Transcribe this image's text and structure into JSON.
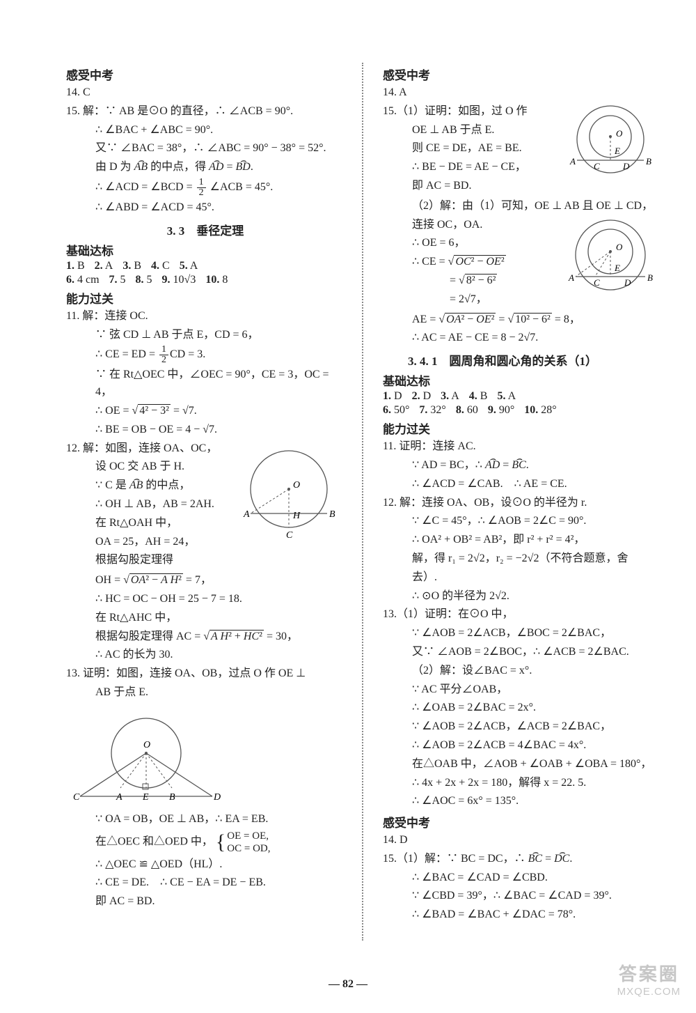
{
  "page_number": "— 82 —",
  "watermark": {
    "top": "答案圈",
    "bottom": "MXQE.COM"
  },
  "colors": {
    "text": "#222222",
    "bg": "#ffffff",
    "divider": "#888888"
  },
  "left": {
    "hdr1": "感受中考",
    "q14": "14.  C",
    "q15": {
      "head": "15.  解：∵ AB 是⊙O 的直径，∴ ∠ACB = 90°.",
      "l2": "∴ ∠BAC + ∠ABC = 90°.",
      "l3": "又∵ ∠BAC = 38°，∴ ∠ABC = 90° − 38° = 52°.",
      "l4a": "由 D 为 ",
      "l4b": " 的中点，得 ",
      "l4c": " = ",
      "l4d": ".",
      "l5a": "∴ ∠ACD = ∠BCD = ",
      "l5b": " ∠ACB = 45°.",
      "l6": "∴ ∠ABD = ∠ACD = 45°."
    },
    "title33": "3. 3　垂径定理",
    "hdr_basic": "基础达标",
    "basic_ans1": [
      {
        "n": "1.",
        "v": "B"
      },
      {
        "n": "2.",
        "v": "A"
      },
      {
        "n": "3.",
        "v": "B"
      },
      {
        "n": "4.",
        "v": "C"
      },
      {
        "n": "5.",
        "v": "A"
      }
    ],
    "basic_ans2": [
      {
        "n": "6.",
        "v": "4 cm"
      },
      {
        "n": "7.",
        "v": "5"
      },
      {
        "n": "8.",
        "v": "5"
      },
      {
        "n": "9.",
        "v": "10√3"
      },
      {
        "n": "10.",
        "v": "8"
      }
    ],
    "hdr_skill": "能力过关",
    "q11": {
      "head": "11.  解：连接 OC.",
      "l2": "∵ 弦 CD ⊥ AB 于点 E，CD = 6，",
      "l3a": "∴ CE = ED = ",
      "l3b": "CD = 3.",
      "l4": "∵ 在 Rt△OEC 中，∠OEC = 90°，CE = 3，OC = 4，",
      "l5a": "∴ OE = ",
      "l5b": " = √7.",
      "l6": "∴ BE = OB − OE = 4 − √7."
    },
    "q12": {
      "head": "12.  解：如图，连接 OA、OC，",
      "l2": "设 OC 交 AB 于 H.",
      "l3a": "∵ C 是 ",
      "l3b": " 的中点，",
      "l4": "∴ OH ⊥ AB，AB = 2AH.",
      "l5": "在 Rt△OAH 中，",
      "l6": "OA = 25，AH = 24，",
      "l7": "根据勾股定理得",
      "l8a": "OH = ",
      "l8b": " = 7，",
      "l9": "∴ HC = OC − OH = 25 − 7 = 18.",
      "l10": "在 Rt△AHC 中，",
      "l11a": "根据勾股定理得 AC = ",
      "l11b": " = 30，",
      "l12": "∴ AC 的长为 30."
    },
    "q13": {
      "head": "13.  证明：如图，连接 OA、OB，过点 O 作 OE ⊥",
      "l2": "AB 于点 E.",
      "l3": "∵ OA = OB，OE ⊥ AB，∴ EA = EB.",
      "l4a": "在△OEC 和△OED 中，",
      "sys1": "OE = OE,",
      "sys2": "OC = OD,",
      "l5": "∴ △OEC ≌ △OED（HL）.",
      "l6": "∴ CE = DE.　∴ CE − EA = DE − EB.",
      "l7": "即 AC = BD."
    },
    "fig12": {
      "labels": {
        "O": "O",
        "A": "A",
        "B": "B",
        "C": "C",
        "H": "H"
      },
      "circle_color": "#555555",
      "dash_color": "#555555"
    },
    "fig13": {
      "labels": {
        "O": "O",
        "A": "A",
        "B": "B",
        "C": "C",
        "D": "D",
        "E": "E"
      },
      "circle_color": "#555555"
    }
  },
  "right": {
    "hdr1": "感受中考",
    "q14": "14.  A",
    "q15": {
      "head": "15.（1）证明：如图，过 O 作",
      "l2": "OE ⊥ AB 于点 E.",
      "l3": "则 CE = DE，AE = BE.",
      "l4": "∴ BE − DE = AE − CE，",
      "l5": "即 AC = BD.",
      "l6": "（2）解：由（1）可知，OE ⊥ AB 且 OE ⊥ CD，",
      "l7": "连接 OC，OA.",
      "l8": "∴ OE = 6，",
      "l9a": "∴ CE = ",
      "l10a": "　　= ",
      "l11": "　　= 2√7，",
      "l12a": "AE = ",
      "l12b": " = ",
      "l12c": " = 8，",
      "l13": "∴ AC = AE − CE = 8 − 2√7."
    },
    "title341": "3. 4. 1　圆周角和圆心角的关系（1）",
    "hdr_basic": "基础达标",
    "basic_ans1": [
      {
        "n": "1.",
        "v": "D"
      },
      {
        "n": "2.",
        "v": "D"
      },
      {
        "n": "3.",
        "v": "A"
      },
      {
        "n": "4.",
        "v": "B"
      },
      {
        "n": "5.",
        "v": "A"
      }
    ],
    "basic_ans2": [
      {
        "n": "6.",
        "v": "50°"
      },
      {
        "n": "7.",
        "v": "32°"
      },
      {
        "n": "8.",
        "v": "60"
      },
      {
        "n": "9.",
        "v": "90°"
      },
      {
        "n": "10.",
        "v": "28°"
      }
    ],
    "hdr_skill": "能力过关",
    "q11": {
      "head": "11.  证明：连接 AC.",
      "l2a": "∵ AD = BC，∴ ",
      "l2b": " = ",
      "l2c": ".",
      "l3": "∴ ∠ACD = ∠CAB.　∴ AE = CE."
    },
    "q12": {
      "head": "12.  解：连接 OA、OB，设⊙O 的半径为 r.",
      "l2": "∵ ∠C = 45°，∴ ∠AOB = 2∠C = 90°.",
      "l3": "∴ OA² + OB² = AB²，即 r² + r² = 4²，",
      "l4": "解，得 r₁ = 2√2，r₂ = −2√2（不符合题意，舍",
      "l5": "去）.",
      "l6": "∴ ⊙O 的半径为 2√2."
    },
    "q13": {
      "head": "13.（1）证明：在⊙O 中，",
      "l2": "∵ ∠AOB = 2∠ACB，∠BOC = 2∠BAC，",
      "l3": "又∵ ∠AOB = 2∠BOC，∴ ∠ACB = 2∠BAC.",
      "l4": "（2）解：设∠BAC = x°.",
      "l5": "∵ AC 平分∠OAB，",
      "l6": "∴ ∠OAB = 2∠BAC = 2x°.",
      "l7": "∵ ∠AOB = 2∠ACB，∠ACB = 2∠BAC，",
      "l8": "∴ ∠AOB = 2∠ACB = 4∠BAC = 4x°.",
      "l9": "在△OAB 中，∠AOB + ∠OAB + ∠OBA = 180°，",
      "l10": "∴ 4x + 2x + 2x = 180，解得 x = 22. 5.",
      "l11": "∴ ∠AOC = 6x° = 135°."
    },
    "hdr2": "感受中考",
    "q14b": "14.  D",
    "q15b": {
      "head": "15.（1）解：∵ BC = DC，∴ ",
      "arc_eq": " = ",
      "l2": "∴ ∠BAC = ∠CAD = ∠CBD.",
      "l3": "∵ ∠CBD = 39°，∴ ∠BAC = ∠CAD = 39°.",
      "l4": "∴ ∠BAD = ∠BAC + ∠DAC = 78°."
    },
    "fig15a": {
      "labels": {
        "O": "O",
        "A": "A",
        "B": "B",
        "C": "C",
        "D": "D",
        "E": "E"
      }
    },
    "fig15b": {
      "labels": {
        "O": "O",
        "A": "A",
        "B": "B",
        "C": "C",
        "D": "D",
        "E": "E"
      }
    }
  }
}
